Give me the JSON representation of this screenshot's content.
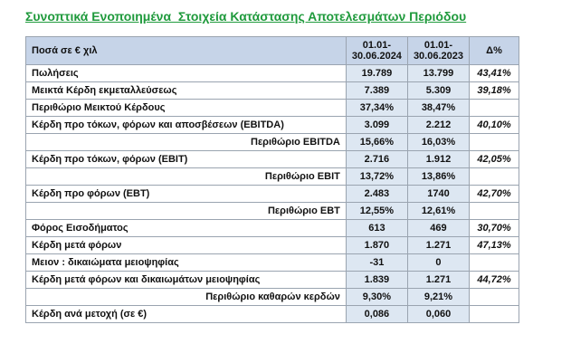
{
  "header": {
    "title": "Συνοπτικά Ενοποιημένα  Στοιχεία Κατάστασης Αποτελεσμάτων Περιόδου"
  },
  "table": {
    "columns": [
      "Ποσά σε € χιλ",
      "01.01-\n30.06.2024",
      "01.01-\n30.06.2023",
      "Δ%"
    ],
    "rows": [
      [
        "Πωλήσεις",
        "19.789",
        "13.799",
        "43,41%"
      ],
      [
        "Μεικτά Κέρδη εκμεταλλεύσεως",
        "7.389",
        "5.309",
        "39,18%"
      ],
      [
        "Περιθώριο Μεικτού Κέρδους",
        "37,34%",
        "38,47%"
      ],
      [
        "Κέρδη προ τόκων, φόρων και αποσβέσεων (EBITDA)",
        "3.099",
        "2.212",
        "40,10%"
      ],
      [
        "Περιθώριο EBITDA",
        "15,66%",
        "16,03%"
      ],
      [
        "Κέρδη προ τόκων, φόρων (EBIT)",
        "2.716",
        "1.912",
        "42,05%"
      ],
      [
        "Περιθώριο EBIT",
        "13,72%",
        "13,86%"
      ],
      [
        "Κέρδη προ φόρων (EBT)",
        "2.483",
        "1740",
        "42,70%"
      ],
      [
        "Περιθώριο EBT",
        "12,55%",
        "12,61%"
      ],
      [
        "Φόρος Εισοδήματος",
        "613",
        "469",
        "30,70%"
      ],
      [
        "Κέρδη μετά φόρων",
        "1.870",
        "1.271",
        "47,13%"
      ],
      [
        "Μειον : δικαιώματα μειοψηφίας",
        "-31",
        "0"
      ],
      [
        "Κέρδη  μετά φόρων και δικαιωμάτων μειοψηφίας",
        "1.839",
        "1.271",
        "44,72%"
      ],
      [
        "Περιθώριο καθαρών κερδών",
        "9,30%",
        "9,21%"
      ],
      [
        "Κέρδη ανά μετοχή (σε €)",
        "0,086",
        "0,060"
      ]
    ]
  }
}
